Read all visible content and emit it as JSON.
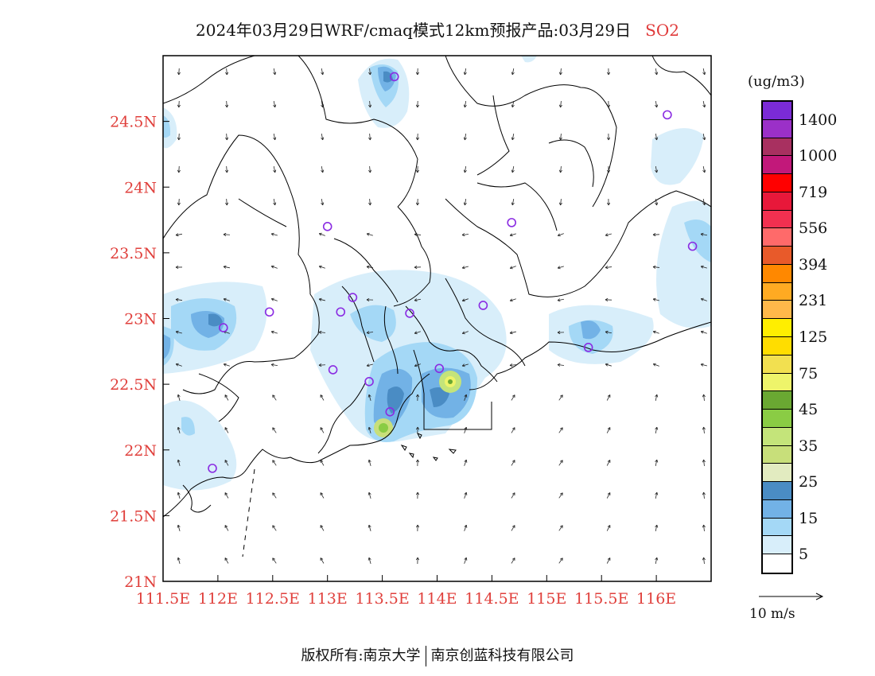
{
  "title": {
    "text": "2024年03月29日WRF/cmaq模式12km预报产品:03月29日",
    "pollutant": "SO2"
  },
  "map": {
    "lon_range": [
      111.5,
      116.5
    ],
    "lat_range": [
      21.0,
      25.0
    ],
    "lat_labels": [
      "24.5N",
      "24N",
      "23.5N",
      "23N",
      "22.5N",
      "22N",
      "21.5N",
      "21N"
    ],
    "lat_values": [
      24.5,
      24.0,
      23.5,
      23.0,
      22.5,
      22.0,
      21.5,
      21.0
    ],
    "lon_labels": [
      "111.5E",
      "112E",
      "112.5E",
      "113E",
      "113.5E",
      "114E",
      "114.5E",
      "115E",
      "115.5E",
      "116E"
    ],
    "lon_values": [
      111.5,
      112.0,
      112.5,
      113.0,
      113.5,
      114.0,
      114.5,
      115.0,
      115.5,
      116.0
    ],
    "tick_label_color": "#e0403c",
    "stations": [
      [
        113.61,
        24.84
      ],
      [
        116.1,
        24.55
      ],
      [
        113.0,
        23.7
      ],
      [
        114.68,
        23.73
      ],
      [
        116.33,
        23.55
      ],
      [
        113.23,
        23.16
      ],
      [
        113.12,
        23.05
      ],
      [
        112.47,
        23.05
      ],
      [
        113.75,
        23.04
      ],
      [
        114.42,
        23.1
      ],
      [
        112.05,
        22.93
      ],
      [
        115.38,
        22.78
      ],
      [
        113.05,
        22.61
      ],
      [
        113.38,
        22.52
      ],
      [
        114.02,
        22.62
      ],
      [
        113.57,
        22.29
      ],
      [
        111.95,
        21.86
      ]
    ],
    "station_color": "#8a2be2"
  },
  "legend": {
    "unit": "(ug/m3)",
    "colors": [
      "#7b2bd6",
      "#9b30c8",
      "#a83060",
      "#c2187a",
      "#ff0000",
      "#e8183a",
      "#f23050",
      "#ff6a6a",
      "#e85a2a",
      "#ff8800",
      "#ffaa22",
      "#ffb84a",
      "#ffee00",
      "#ffdd00",
      "#f2e050",
      "#eef46a",
      "#6aa832",
      "#8acc44",
      "#c4e47a",
      "#c8df7a",
      "#e2ebc0",
      "#4a8cc4",
      "#72b2e6",
      "#a4d8f6",
      "#d8eefa",
      "#ffffff"
    ],
    "labels": [
      "1400",
      "1000",
      "719",
      "556",
      "394",
      "231",
      "125",
      "75",
      "45",
      "35",
      "25",
      "15",
      "5"
    ]
  },
  "wind_reference": {
    "label": "10 m/s"
  },
  "footer": {
    "left": "版权所有:南京大学",
    "right": "南京创蓝科技有限公司"
  }
}
